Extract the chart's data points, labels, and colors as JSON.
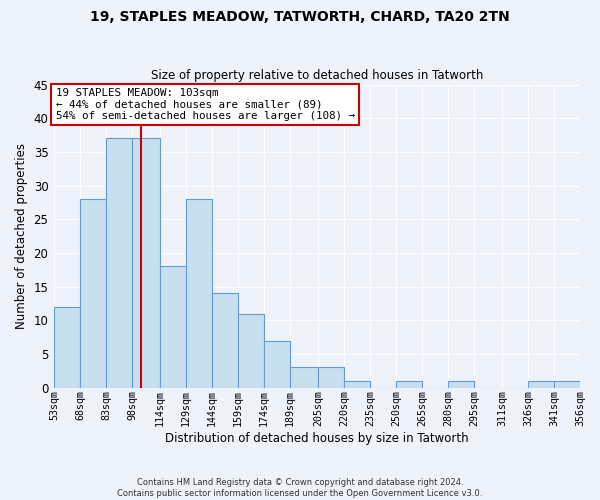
{
  "title": "19, STAPLES MEADOW, TATWORTH, CHARD, TA20 2TN",
  "subtitle": "Size of property relative to detached houses in Tatworth",
  "xlabel": "Distribution of detached houses by size in Tatworth",
  "ylabel": "Number of detached properties",
  "bar_edges": [
    53,
    68,
    83,
    98,
    114,
    129,
    144,
    159,
    174,
    189,
    205,
    220,
    235,
    250,
    265,
    280,
    295,
    311,
    326,
    341,
    356
  ],
  "bar_heights": [
    12,
    28,
    37,
    37,
    18,
    28,
    14,
    11,
    7,
    3,
    3,
    1,
    0,
    1,
    0,
    1,
    0,
    0,
    1,
    1
  ],
  "bar_color": "#c8dff0",
  "bar_edge_color": "#6699cc",
  "property_line_x": 103,
  "property_line_color": "#cc0000",
  "ylim": [
    0,
    45
  ],
  "yticks": [
    0,
    5,
    10,
    15,
    20,
    25,
    30,
    35,
    40,
    45
  ],
  "tick_labels": [
    "53sqm",
    "68sqm",
    "83sqm",
    "98sqm",
    "114sqm",
    "129sqm",
    "144sqm",
    "159sqm",
    "174sqm",
    "189sqm",
    "205sqm",
    "220sqm",
    "235sqm",
    "250sqm",
    "265sqm",
    "280sqm",
    "295sqm",
    "311sqm",
    "326sqm",
    "341sqm",
    "356sqm"
  ],
  "annotation_title": "19 STAPLES MEADOW: 103sqm",
  "annotation_line1": "← 44% of detached houses are smaller (89)",
  "annotation_line2": "54% of semi-detached houses are larger (108) →",
  "annotation_box_color": "#ffffff",
  "annotation_box_edge_color": "#cc0000",
  "footer_line1": "Contains HM Land Registry data © Crown copyright and database right 2024.",
  "footer_line2": "Contains public sector information licensed under the Open Government Licence v3.0.",
  "background_color": "#eef2fb",
  "grid_color": "#ffffff"
}
